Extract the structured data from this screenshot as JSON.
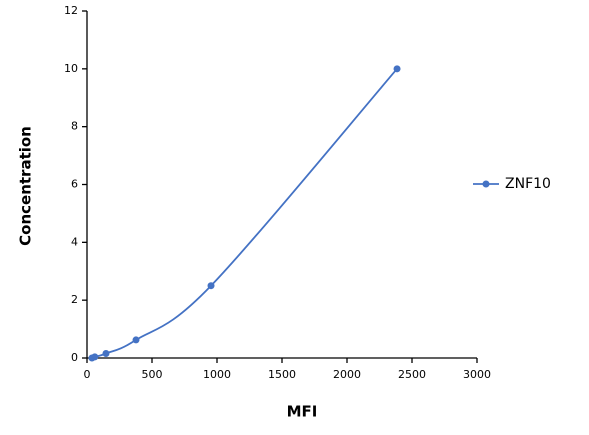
{
  "chart_data": {
    "type": "line",
    "x_label": "MFI",
    "y_label": "Concentration",
    "series": [
      {
        "name": "ZNF10",
        "color": "#4472c4",
        "x": [
          38,
          60,
          146,
          377,
          954,
          2385
        ],
        "values": [
          0,
          0.039,
          0.156,
          0.625,
          2.5,
          10
        ]
      }
    ],
    "xlim": [
      0,
      3000
    ],
    "xticks": [
      0,
      500,
      1000,
      1500,
      2000,
      2500,
      3000
    ],
    "ylim": [
      0,
      12
    ],
    "yticks": [
      0,
      2,
      4,
      6,
      8,
      10,
      12
    ],
    "grid": false,
    "legend": "right",
    "smooth": true
  }
}
